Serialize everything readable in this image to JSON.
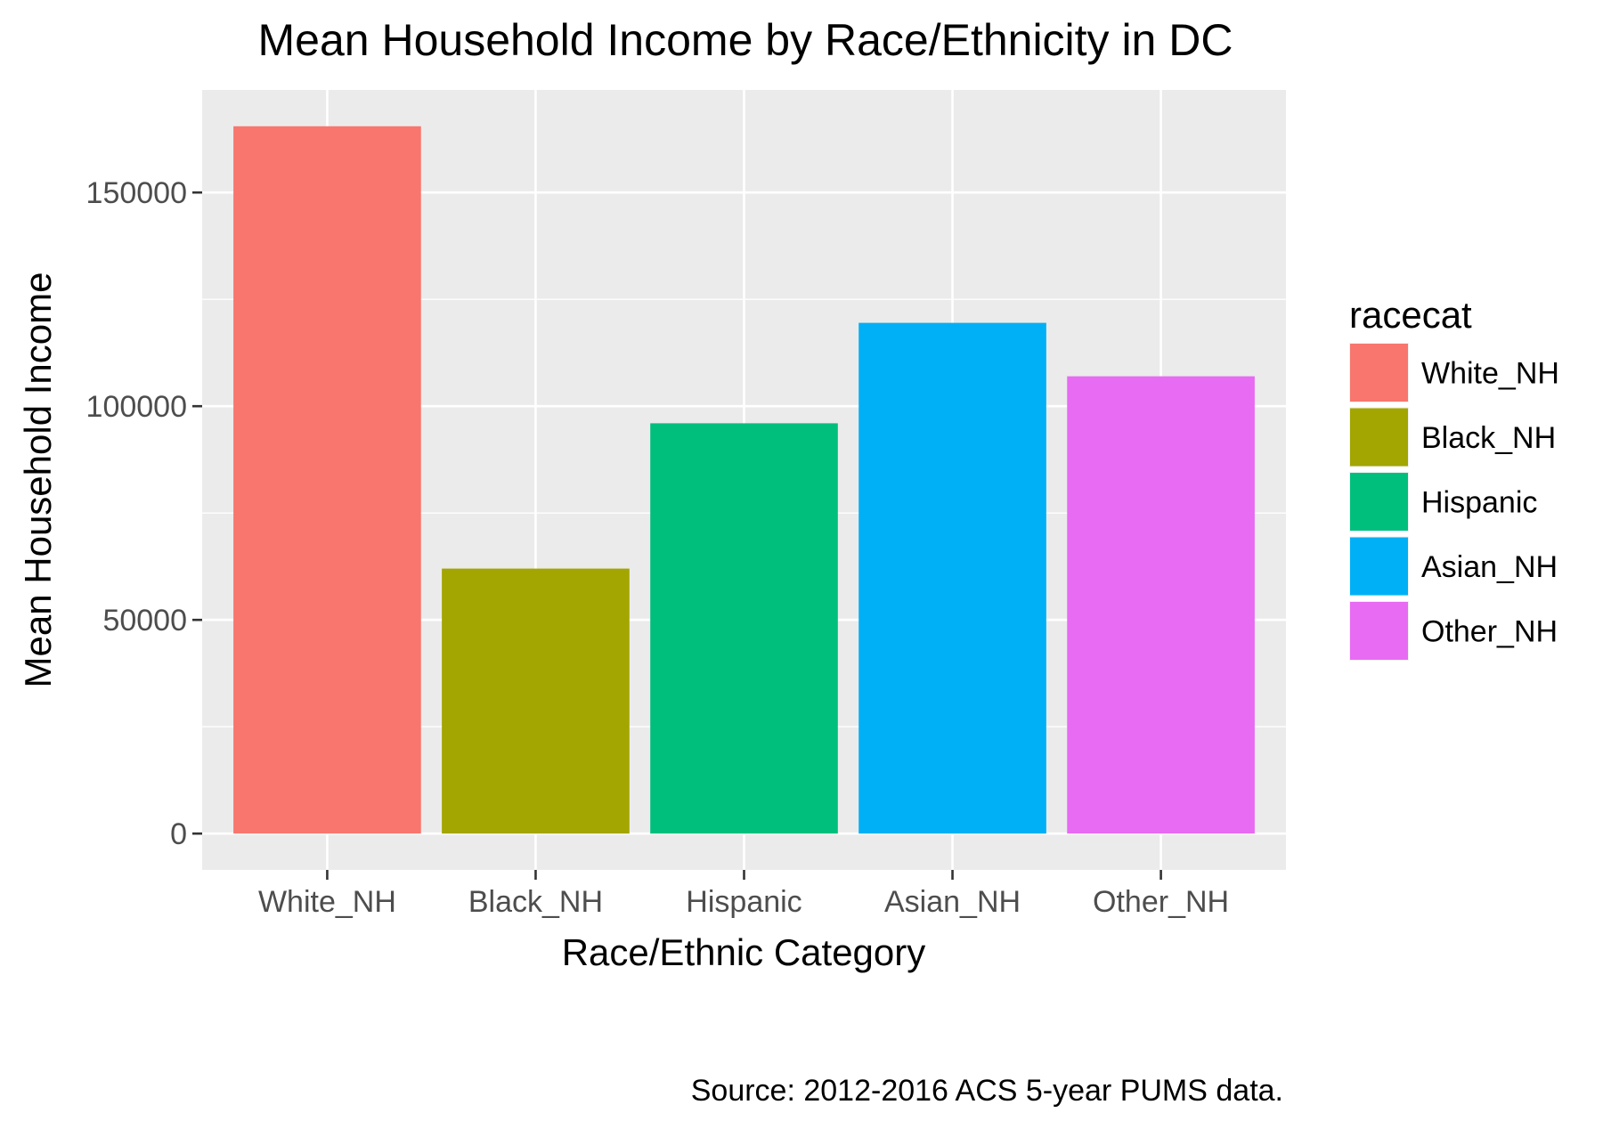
{
  "chart_data": {
    "type": "bar",
    "title": "Mean Household Income by Race/Ethnicity in DC",
    "xlabel": "Race/Ethnic Category",
    "ylabel": "Mean Household Income",
    "caption": "Source: 2012-2016 ACS 5-year PUMS data.",
    "categories": [
      "White_NH",
      "Black_NH",
      "Hispanic",
      "Asian_NH",
      "Other_NH"
    ],
    "values": [
      165500,
      62000,
      96000,
      119500,
      107000
    ],
    "colors": [
      "#F8766D",
      "#A3A500",
      "#00BF7D",
      "#00B0F6",
      "#E76BF3"
    ],
    "ylim": [
      -8500,
      174000
    ],
    "yticks": [
      0,
      50000,
      100000,
      150000
    ],
    "ytick_labels": [
      "0",
      "50000",
      "100000",
      "150000"
    ],
    "grid": true,
    "panel_background": "#EBEBEB",
    "legend": {
      "title": "racecat",
      "placement": "right",
      "items": [
        {
          "label": "White_NH",
          "color": "#F8766D"
        },
        {
          "label": "Black_NH",
          "color": "#A3A500"
        },
        {
          "label": "Hispanic",
          "color": "#00BF7D"
        },
        {
          "label": "Asian_NH",
          "color": "#00B0F6"
        },
        {
          "label": "Other_NH",
          "color": "#E76BF3"
        }
      ]
    }
  }
}
